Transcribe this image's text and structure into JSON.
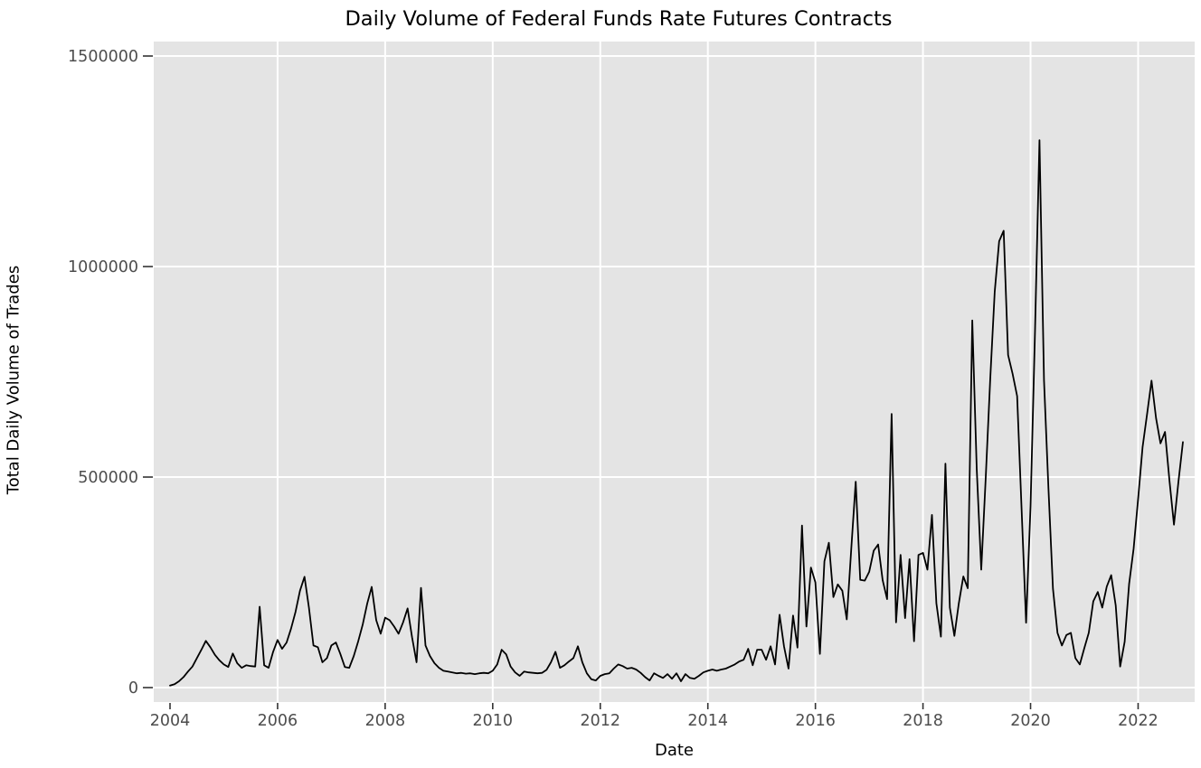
{
  "chart_data": {
    "type": "line",
    "title": "Daily Volume of Federal Funds Rate Futures Contracts",
    "xlabel": "Date",
    "ylabel": "Total Daily Volume of Trades",
    "x_ticks": [
      {
        "label": "2004",
        "year": 2004
      },
      {
        "label": "2006",
        "year": 2006
      },
      {
        "label": "2008",
        "year": 2008
      },
      {
        "label": "2010",
        "year": 2010
      },
      {
        "label": "2012",
        "year": 2012
      },
      {
        "label": "2014",
        "year": 2014
      },
      {
        "label": "2016",
        "year": 2016
      },
      {
        "label": "2018",
        "year": 2018
      },
      {
        "label": "2020",
        "year": 2020
      },
      {
        "label": "2022",
        "year": 2022
      }
    ],
    "y_ticks": [
      {
        "label": "0",
        "value": 0
      },
      {
        "label": "500000",
        "value": 500000
      },
      {
        "label": "1000000",
        "value": 1000000
      },
      {
        "label": "1500000",
        "value": 1500000
      }
    ],
    "ylim": [
      0,
      1500000
    ],
    "grid": true,
    "legend_position": "none",
    "series": [
      {
        "name": "total-daily-volume",
        "start_year": 2004,
        "start_month": 1,
        "frequency": "monthly",
        "values": [
          5000,
          8000,
          15000,
          25000,
          38000,
          50000,
          70000,
          90000,
          111000,
          96000,
          78000,
          65000,
          55000,
          49000,
          81000,
          58000,
          47000,
          53000,
          51000,
          50000,
          192000,
          53000,
          47000,
          85000,
          113000,
          92000,
          107000,
          140000,
          180000,
          230000,
          263000,
          190000,
          100000,
          96000,
          60000,
          70000,
          100000,
          107000,
          80000,
          49000,
          47000,
          75000,
          110000,
          150000,
          200000,
          239000,
          160000,
          128000,
          166000,
          160000,
          145000,
          128000,
          155000,
          188000,
          120000,
          60000,
          237000,
          100000,
          75000,
          58000,
          47000,
          40000,
          38000,
          36000,
          34000,
          35000,
          33000,
          34000,
          32000,
          34000,
          35000,
          34000,
          40000,
          55000,
          90000,
          79000,
          50000,
          36000,
          28000,
          38000,
          36000,
          35000,
          34000,
          35000,
          42000,
          60000,
          85000,
          47000,
          53000,
          62000,
          70000,
          98000,
          60000,
          34000,
          20000,
          17000,
          28000,
          32000,
          34000,
          45000,
          55000,
          51000,
          45000,
          47000,
          43000,
          35000,
          25000,
          17000,
          34000,
          28000,
          23000,
          32000,
          21000,
          34000,
          15000,
          32000,
          23000,
          21000,
          28000,
          36000,
          40000,
          43000,
          40000,
          43000,
          45000,
          50000,
          55000,
          62000,
          66000,
          92000,
          53000,
          90000,
          90000,
          66000,
          98000,
          55000,
          173000,
          98000,
          45000,
          171000,
          95000,
          385000,
          145000,
          285000,
          250000,
          80000,
          300000,
          344000,
          215000,
          245000,
          230000,
          162000,
          330000,
          489000,
          256000,
          254000,
          275000,
          325000,
          340000,
          255000,
          210000,
          650000,
          155000,
          315000,
          165000,
          305000,
          110000,
          315000,
          320000,
          280000,
          410000,
          200000,
          121000,
          532000,
          190000,
          123000,
          200000,
          264000,
          236000,
          872000,
          520000,
          280000,
          500000,
          731000,
          940000,
          1060000,
          1085000,
          790000,
          745000,
          692000,
          425000,
          154000,
          430000,
          850000,
          1300000,
          730000,
          474000,
          235000,
          130000,
          100000,
          125000,
          130000,
          70000,
          55000,
          94000,
          130000,
          205000,
          227000,
          190000,
          240000,
          267000,
          195000,
          50000,
          109000,
          246000,
          330000,
          449000,
          571000,
          650000,
          729000,
          640000,
          580000,
          607000,
          490000,
          387000,
          490000,
          583000
        ]
      }
    ]
  },
  "style": {
    "panel_color": "#e4e4e4",
    "grid_color": "#ffffff",
    "line_color": "#000000",
    "tick_mark_color": "#333333",
    "tick_label_color": "#4d4d4d",
    "text_color": "#000000",
    "background_color": "#ffffff"
  }
}
